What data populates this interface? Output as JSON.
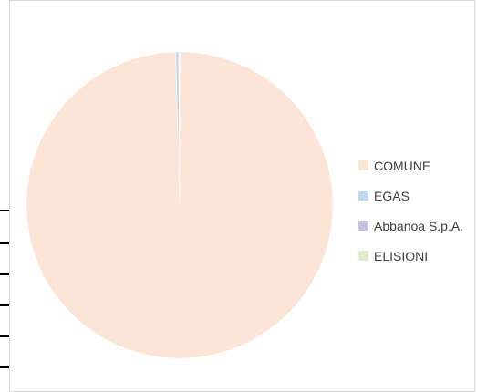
{
  "chart_data": {
    "type": "pie",
    "categories": [
      "COMUNE",
      "EGAS",
      "Abbanoa S.p.A.",
      "ELISIONI"
    ],
    "values": [
      99.6,
      0.3,
      0.05,
      0.05
    ],
    "colors": [
      "#fce4d6",
      "#bdd7ee",
      "#c9c0e0",
      "#dfeccf"
    ],
    "legend_position": "right",
    "start_angle_deg": 0
  }
}
